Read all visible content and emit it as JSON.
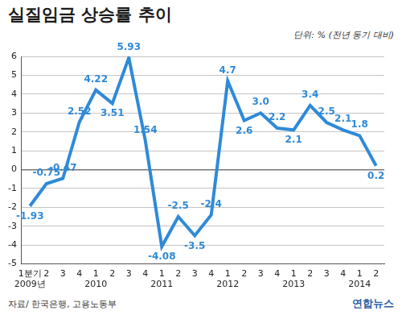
{
  "chart_data": {
    "type": "line",
    "title": "실질임금 상승률 추이",
    "subtitle": "단위: % (전년 동기 대비)",
    "notes": [
      "자료/ 한국은행, 고용노동부",
      "연합뉴스"
    ],
    "categories": [
      "1분기",
      "2",
      "3",
      "4",
      "1",
      "2",
      "3",
      "4",
      "1",
      "2",
      "3",
      "4",
      "1",
      "2",
      "3",
      "4",
      "1",
      "2",
      "3",
      "4",
      "1",
      "2"
    ],
    "years": [
      "2009년",
      null,
      null,
      null,
      "2010",
      null,
      null,
      null,
      "2011",
      null,
      null,
      null,
      "2012",
      null,
      null,
      null,
      "2013",
      null,
      null,
      null,
      "2014",
      null
    ],
    "values": [
      -1.93,
      -0.75,
      -0.47,
      2.52,
      4.22,
      3.51,
      5.93,
      1.54,
      -4.08,
      -2.5,
      -3.5,
      -2.4,
      4.7,
      2.6,
      3.0,
      2.2,
      2.1,
      3.4,
      2.5,
      2.1,
      1.8,
      0.2
    ],
    "value_labels": [
      "-1.93",
      "-0.75",
      "-0.47",
      "2.52",
      "4.22",
      "3.51",
      "5.93",
      "1.54",
      "-4.08",
      "-2.5",
      "-3.5",
      "-2.4",
      "4.7",
      "2.6",
      "3.0",
      "2.2",
      "2.1",
      "3.4",
      "2.5",
      "2.1",
      "1.8",
      "0.2"
    ],
    "color": "#2f8ad8",
    "ylim": [
      -5,
      6
    ],
    "yticks": [
      -5,
      -4,
      -3,
      -2,
      -1,
      0,
      1,
      2,
      3,
      4,
      5,
      6
    ],
    "grid": true,
    "data_labels": true,
    "marker": "none",
    "line_style": "solid"
  }
}
